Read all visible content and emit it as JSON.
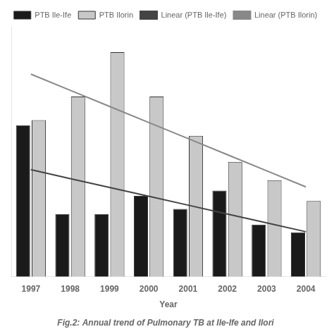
{
  "chart_data": {
    "type": "bar",
    "title": "Fig.2: Annual trend of Pulmonary TB at Ile-Ife and Ilori",
    "xlabel": "Year",
    "categories": [
      "1997",
      "1998",
      "1999",
      "2000",
      "2001",
      "2002",
      "2003",
      "2004"
    ],
    "series": [
      {
        "name": "PTB Ile-Ife",
        "type": "bar",
        "color": "#1a1a1a",
        "values": [
          290,
          120,
          120,
          155,
          130,
          165,
          100,
          85
        ]
      },
      {
        "name": "PTB Ilorin",
        "type": "bar",
        "color": "#c8c8c8",
        "values": [
          300,
          345,
          430,
          345,
          270,
          220,
          185,
          145
        ]
      },
      {
        "name": "Linear (PTB Ile-Ife)",
        "type": "line",
        "color": "#444444",
        "marker": "none",
        "line_style": "solid",
        "values": [
          205,
          188.0357142857,
          171.0714285714,
          154.1071428571,
          137.1428571429,
          120.1785714286,
          103.2142857143,
          86.25
        ]
      },
      {
        "name": "Linear (PTB Ilorin)",
        "type": "line",
        "color": "#888888",
        "marker": "none",
        "line_style": "solid",
        "values": [
          387.9166666667,
          357.0833333333,
          326.25,
          295.4166666667,
          264.5833333333,
          233.75,
          202.9166666667,
          172.0833333333
        ]
      }
    ],
    "ylim": [
      0,
      480
    ],
    "tick_labels": "x",
    "grid": false,
    "legend": "top"
  }
}
